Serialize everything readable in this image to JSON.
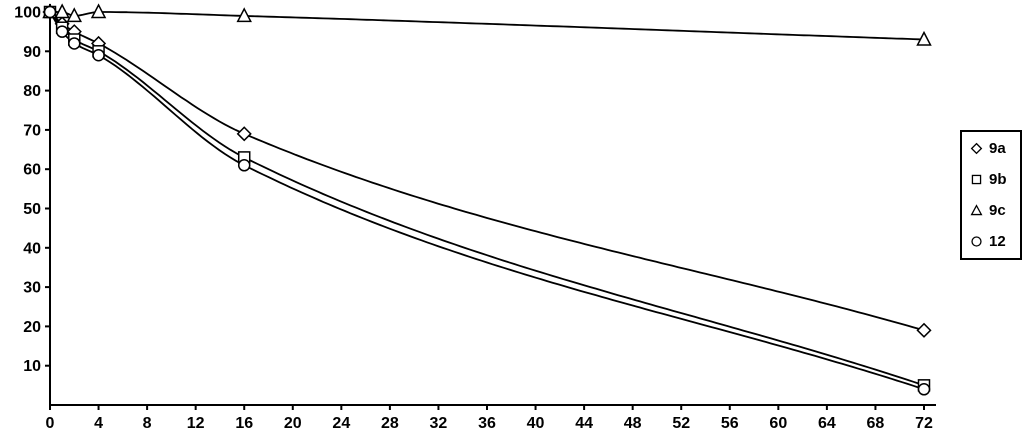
{
  "chart_data": {
    "type": "line",
    "title": "",
    "xlabel": "",
    "ylabel": "",
    "xlim": [
      0,
      72
    ],
    "ylim": [
      0,
      100
    ],
    "x_ticks": [
      0,
      4,
      8,
      12,
      16,
      20,
      24,
      28,
      32,
      36,
      40,
      44,
      48,
      52,
      56,
      60,
      64,
      68,
      72
    ],
    "y_ticks": [
      10,
      20,
      30,
      40,
      50,
      60,
      70,
      80,
      90,
      100
    ],
    "grid": false,
    "legend_position": "right",
    "line_color": "#000000",
    "background_color": "#ffffff",
    "smoothing": "spline",
    "series": [
      {
        "name": "9a",
        "marker": "diamond",
        "x": [
          0,
          1,
          2,
          4,
          16,
          72
        ],
        "y": [
          100,
          97,
          95,
          92,
          69,
          19
        ]
      },
      {
        "name": "9b",
        "marker": "square",
        "x": [
          0,
          1,
          2,
          4,
          16,
          72
        ],
        "y": [
          100,
          96,
          93,
          90,
          63,
          5
        ]
      },
      {
        "name": "9c",
        "marker": "triangle",
        "x": [
          0,
          1,
          2,
          4,
          16,
          72
        ],
        "y": [
          100,
          100,
          99,
          100,
          99,
          93
        ]
      },
      {
        "name": "12",
        "marker": "circle",
        "x": [
          0,
          1,
          2,
          4,
          16,
          72
        ],
        "y": [
          100,
          95,
          92,
          89,
          61,
          4
        ]
      }
    ]
  }
}
